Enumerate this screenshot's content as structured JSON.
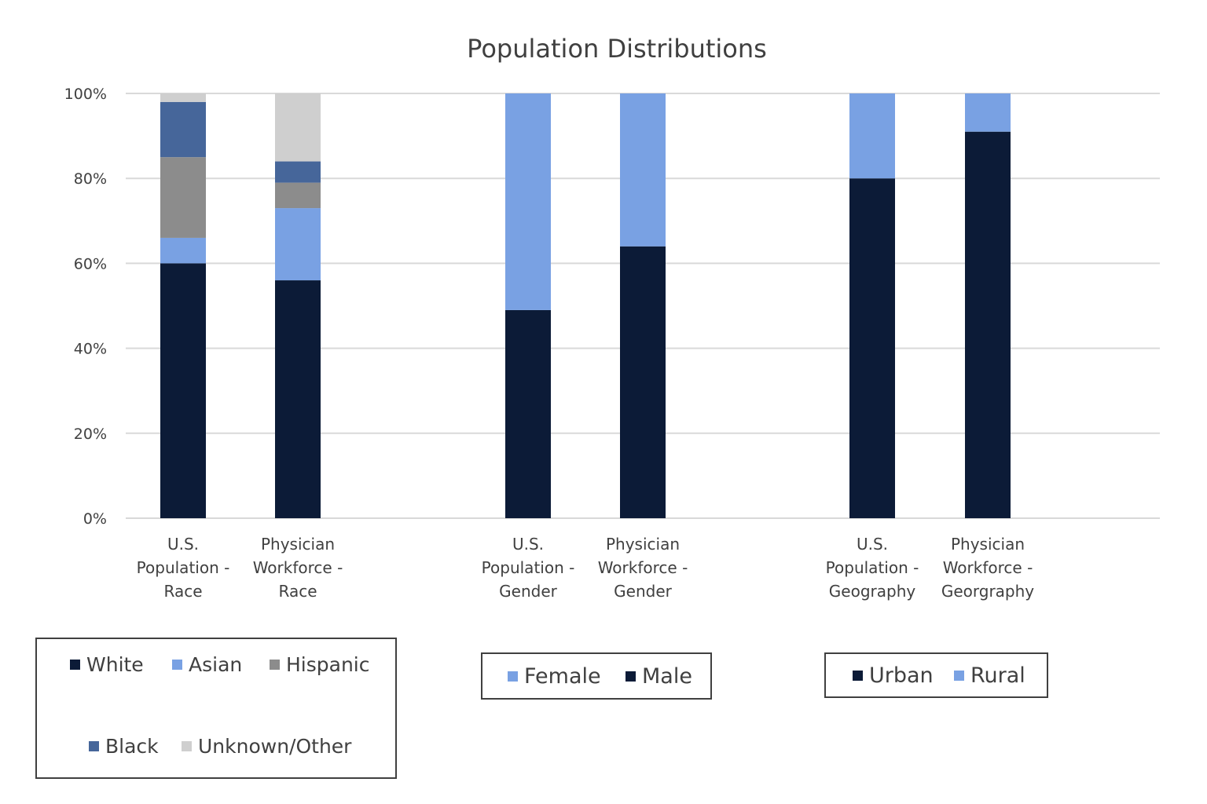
{
  "chart_data": {
    "type": "bar",
    "stacked": true,
    "title": "Population Distributions",
    "xlabel": "",
    "ylabel": "",
    "ylim": [
      0,
      100
    ],
    "y_ticks": [
      "0%",
      "20%",
      "40%",
      "60%",
      "80%",
      "100%"
    ],
    "grid": true,
    "categories": [
      [
        "U.S.",
        "Population -",
        "Race"
      ],
      [
        "Physician",
        "Workforce -",
        "Race"
      ],
      [
        "U.S.",
        "Population -",
        "Gender"
      ],
      [
        "Physician",
        "Workforce -",
        "Gender"
      ],
      [
        "U.S.",
        "Population -",
        "Geography"
      ],
      [
        "Physician",
        "Workforce -",
        "Georgraphy"
      ]
    ],
    "series": [
      {
        "name": "White",
        "color": "#0c1b37",
        "values": [
          60,
          56,
          null,
          null,
          null,
          null
        ]
      },
      {
        "name": "Asian",
        "color": "#79a1e3",
        "values": [
          6,
          17,
          null,
          null,
          null,
          null
        ]
      },
      {
        "name": "Hispanic",
        "color": "#8c8c8c",
        "values": [
          19,
          6,
          null,
          null,
          null,
          null
        ]
      },
      {
        "name": "Black",
        "color": "#46669a",
        "values": [
          13,
          5,
          null,
          null,
          null,
          null
        ]
      },
      {
        "name": "Unknown/Other",
        "color": "#cfcfcf",
        "values": [
          2,
          16,
          null,
          null,
          null,
          null
        ]
      },
      {
        "name": "Male",
        "color": "#0c1b37",
        "values": [
          null,
          null,
          49,
          64,
          null,
          null
        ]
      },
      {
        "name": "Female",
        "color": "#79a1e3",
        "values": [
          null,
          null,
          51,
          36,
          null,
          null
        ]
      },
      {
        "name": "Urban",
        "color": "#0c1b37",
        "values": [
          null,
          null,
          null,
          null,
          80,
          91
        ]
      },
      {
        "name": "Rural",
        "color": "#79a1e3",
        "values": [
          null,
          null,
          null,
          null,
          20,
          9
        ]
      }
    ],
    "legends": [
      {
        "items": [
          {
            "label": "White",
            "color": "#0c1b37"
          },
          {
            "label": "Asian",
            "color": "#79a1e3"
          },
          {
            "label": "Hispanic",
            "color": "#8c8c8c"
          },
          {
            "label": "Black",
            "color": "#46669a"
          },
          {
            "label": "Unknown/Other",
            "color": "#cfcfcf"
          }
        ]
      },
      {
        "items": [
          {
            "label": "Female",
            "color": "#79a1e3"
          },
          {
            "label": "Male",
            "color": "#0c1b37"
          }
        ]
      },
      {
        "items": [
          {
            "label": "Urban",
            "color": "#0c1b37"
          },
          {
            "label": "Rural",
            "color": "#79a1e3"
          }
        ]
      }
    ]
  }
}
